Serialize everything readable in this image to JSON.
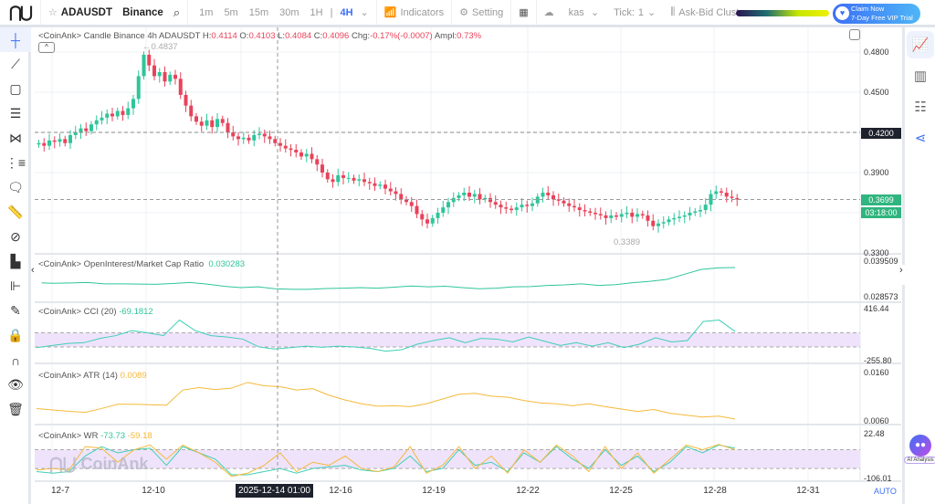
{
  "header": {
    "symbol": "ADAUSDT",
    "exchange": "Binance",
    "timeframes": [
      "1m",
      "5m",
      "15m",
      "30m",
      "1H",
      "4H"
    ],
    "active_timeframe": "4H",
    "indicators": "Indicators",
    "setting": "Setting",
    "kas": "kas",
    "tick_label": "Tick:",
    "tick_value": "1",
    "cluster": "Ask-Bid Cluster",
    "promo_line1": "Claim Now",
    "promo_line2": "7-Day Free VIP Trial"
  },
  "legend": {
    "prefix": "<CoinAnk> Candle  Binance 4h ADAUSDT",
    "h_label": "H:",
    "h": "0.4114",
    "o_label": "O:",
    "o": "0.4103",
    "l_label": "L:",
    "l": "0.4084",
    "c_label": "C:",
    "c": "0.4096",
    "chg_label": "Chg:",
    "chg": "-0.17%(-0.0007)",
    "ampl_label": "Ampl:",
    "ampl": "0.73%"
  },
  "price_axis": {
    "ticks": [
      "0.4800",
      "0.4500",
      "0.3900",
      "0.3300"
    ],
    "crosshair_price": "0.4200",
    "last_price": "0.3699",
    "countdown": "03:18:00",
    "high_label": "←0.4837",
    "low_label": "0.3389"
  },
  "panels": {
    "oi": {
      "title": "<CoinAnk> OpenInterest/Market Cap Ratio",
      "value": "0.030283",
      "max": "0.039509",
      "min": "0.028573"
    },
    "cci": {
      "title": "<CoinAnk> CCI",
      "param": "(20)",
      "value": "-69.1812",
      "max": "416.44",
      "min": "-255.80"
    },
    "atr": {
      "title": "<CoinAnk> ATR",
      "param": "(14)",
      "value": "0.0089",
      "max": "0.0160",
      "min": "0.0060"
    },
    "wr": {
      "title": "<CoinAnk> WR",
      "value1": "-73.73",
      "value2": "-59.18",
      "max": "22.48",
      "min": "-106.01"
    }
  },
  "x_axis": {
    "ticks": [
      "12-7",
      "12-10",
      "12-16",
      "12-19",
      "12-22",
      "12-25",
      "12-28",
      "12-31"
    ],
    "crosshair_time": "2025-12-14 01:00",
    "auto": "AUTO"
  },
  "watermark": "CoinAnk",
  "ai_label": "AI Analysis",
  "colors": {
    "up": "#2fc59a",
    "down": "#e8435a",
    "accent": "#3b6ff5",
    "atr": "#f5b93a",
    "band": "#efe3fb"
  },
  "chart_data": {
    "type": "candlestick",
    "ylim": [
      0.33,
      0.48
    ],
    "closes": [
      0.412,
      0.41,
      0.414,
      0.413,
      0.415,
      0.412,
      0.418,
      0.42,
      0.423,
      0.421,
      0.426,
      0.429,
      0.431,
      0.434,
      0.432,
      0.436,
      0.433,
      0.438,
      0.445,
      0.462,
      0.478,
      0.47,
      0.462,
      0.465,
      0.458,
      0.463,
      0.46,
      0.448,
      0.44,
      0.432,
      0.428,
      0.425,
      0.429,
      0.424,
      0.43,
      0.427,
      0.42,
      0.417,
      0.415,
      0.416,
      0.414,
      0.418,
      0.419,
      0.417,
      0.415,
      0.412,
      0.41,
      0.408,
      0.407,
      0.405,
      0.402,
      0.404,
      0.4,
      0.396,
      0.39,
      0.385,
      0.383,
      0.388,
      0.386,
      0.386,
      0.384,
      0.385,
      0.383,
      0.382,
      0.38,
      0.381,
      0.378,
      0.376,
      0.374,
      0.37,
      0.368,
      0.365,
      0.359,
      0.355,
      0.352,
      0.356,
      0.36,
      0.364,
      0.368,
      0.371,
      0.373,
      0.375,
      0.372,
      0.374,
      0.37,
      0.371,
      0.368,
      0.366,
      0.364,
      0.363,
      0.362,
      0.364,
      0.366,
      0.365,
      0.367,
      0.372,
      0.375,
      0.373,
      0.37,
      0.369,
      0.367,
      0.365,
      0.364,
      0.362,
      0.361,
      0.36,
      0.359,
      0.358,
      0.356,
      0.358,
      0.357,
      0.359,
      0.36,
      0.357,
      0.359,
      0.358,
      0.354,
      0.35,
      0.352,
      0.353,
      0.355,
      0.356,
      0.357,
      0.358,
      0.36,
      0.361,
      0.362,
      0.366,
      0.374,
      0.376,
      0.375,
      0.372,
      0.371,
      0.3699
    ],
    "oi_ratio": [
      0.034,
      0.0338,
      0.0339,
      0.0341,
      0.0336,
      0.0336,
      0.0335,
      0.0334,
      0.0337,
      0.0341,
      0.0335,
      0.0327,
      0.0322,
      0.0325,
      0.0318,
      0.0316,
      0.0316,
      0.0319,
      0.032,
      0.0322,
      0.032,
      0.0324,
      0.0328,
      0.0325,
      0.0327,
      0.0322,
      0.0318,
      0.032,
      0.0325,
      0.0326,
      0.033,
      0.0332,
      0.0336,
      0.033,
      0.0333,
      0.034,
      0.0345,
      0.0352,
      0.037,
      0.0388,
      0.0394,
      0.0395
    ],
    "cci": [
      -110,
      -80,
      -50,
      -40,
      20,
      60,
      130,
      100,
      60,
      280,
      130,
      60,
      40,
      10,
      -100,
      -130,
      -110,
      -90,
      -105,
      -90,
      -100,
      -120,
      -160,
      -140,
      -60,
      -10,
      30,
      -40,
      20,
      10,
      -30,
      40,
      -20,
      -80,
      -40,
      -90,
      -40,
      -110,
      -60,
      30,
      -30,
      -10,
      260,
      280,
      120
    ],
    "atr": [
      0.0088,
      0.0085,
      0.0082,
      0.008,
      0.0088,
      0.0097,
      0.0097,
      0.0096,
      0.0095,
      0.0127,
      0.0132,
      0.0128,
      0.0131,
      0.0143,
      0.0136,
      0.0134,
      0.0127,
      0.013,
      0.0116,
      0.0106,
      0.0098,
      0.0093,
      0.0094,
      0.0092,
      0.0098,
      0.0108,
      0.0118,
      0.012,
      0.0114,
      0.0112,
      0.0105,
      0.01,
      0.0098,
      0.0094,
      0.0098,
      0.0092,
      0.0087,
      0.0082,
      0.0086,
      0.0078,
      0.0074,
      0.007,
      0.0072,
      0.0066
    ],
    "wr1": [
      -90,
      -95,
      -90,
      -40,
      -10,
      -30,
      -20,
      -15,
      -70,
      -10,
      -30,
      -50,
      -100,
      -100,
      -90,
      -80,
      -95,
      -80,
      -75,
      -70,
      -85,
      -90,
      -80,
      -40,
      -90,
      -80,
      -20,
      -70,
      -60,
      -90,
      -30,
      -60,
      -10,
      -50,
      -80,
      -20,
      -70,
      -40,
      -90,
      -60,
      -10,
      -30,
      -5,
      -15
    ],
    "wr2": [
      -85,
      -80,
      -85,
      -10,
      -15,
      -60,
      -20,
      -5,
      -50,
      -5,
      -30,
      -60,
      -105,
      -95,
      -70,
      -30,
      -90,
      -60,
      -70,
      -40,
      -80,
      -90,
      -75,
      -10,
      -95,
      -70,
      -10,
      -80,
      -40,
      -95,
      -20,
      -60,
      -5,
      -40,
      -90,
      -10,
      -80,
      -30,
      -95,
      -50,
      -5,
      -20,
      -3,
      -20
    ],
    "cci_bands": [
      100,
      0,
      -100
    ],
    "wr_bands": [
      -20,
      -80
    ]
  }
}
